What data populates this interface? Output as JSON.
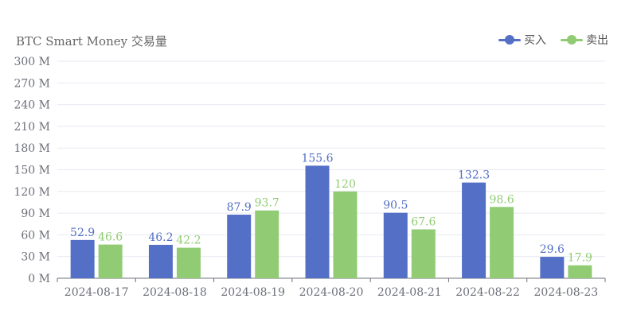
{
  "colors": {
    "buy": "#5470c6",
    "sell": "#91cc75",
    "grid": "#e6e9f0",
    "axis": "#6e7079",
    "text": "#6e7079"
  },
  "chart_data": {
    "type": "bar",
    "title": "BTC Smart Money 交易量",
    "categories": [
      "2024-08-17",
      "2024-08-18",
      "2024-08-19",
      "2024-08-20",
      "2024-08-21",
      "2024-08-22",
      "2024-08-23"
    ],
    "series": [
      {
        "name": "买入",
        "values": [
          52.9,
          46.2,
          87.9,
          155.6,
          90.5,
          132.3,
          29.6
        ],
        "labels": [
          "52.9",
          "46.2",
          "87.9",
          "155.6",
          "90.5",
          "132.3",
          "29.6"
        ]
      },
      {
        "name": "卖出",
        "values": [
          46.6,
          42.2,
          93.7,
          120,
          67.6,
          98.6,
          17.9
        ],
        "labels": [
          "46.6",
          "42.2",
          "93.7",
          "120",
          "67.6",
          "98.6",
          "17.9"
        ]
      }
    ],
    "yticks": [
      "0 M",
      "30 M",
      "60 M",
      "90 M",
      "120 M",
      "150 M",
      "180 M",
      "210 M",
      "240 M",
      "270 M",
      "300 M"
    ],
    "ylim": [
      0,
      300
    ],
    "legend_position": "top-right",
    "grid": true
  }
}
